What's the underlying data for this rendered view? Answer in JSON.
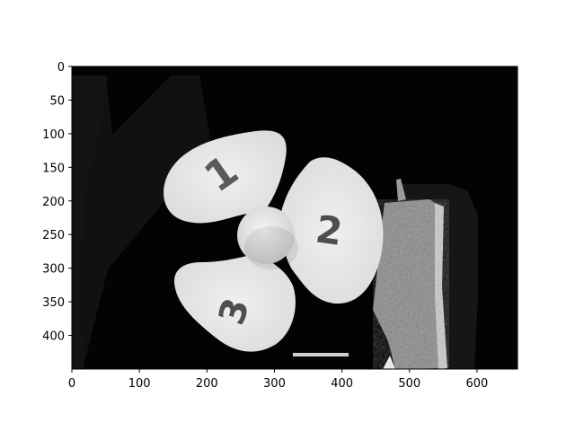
{
  "figure": {
    "image_subject": "three-blade propeller with painted numbers 1, 2, 3 (grayscale depth image)",
    "blade_labels": [
      "1",
      "2",
      "3"
    ],
    "colors": {
      "background": "#ffffff",
      "frame": "#000000",
      "image_dark": "#050505",
      "blade": "#e6e6e6",
      "gray_panel": "#8a8a8a"
    }
  },
  "axes": {
    "x_ticks": [
      0,
      100,
      200,
      300,
      400,
      500,
      600
    ],
    "y_ticks": [
      0,
      50,
      100,
      150,
      200,
      250,
      300,
      350,
      400
    ],
    "xlim": [
      0,
      660
    ],
    "ylim": [
      450,
      0
    ]
  }
}
